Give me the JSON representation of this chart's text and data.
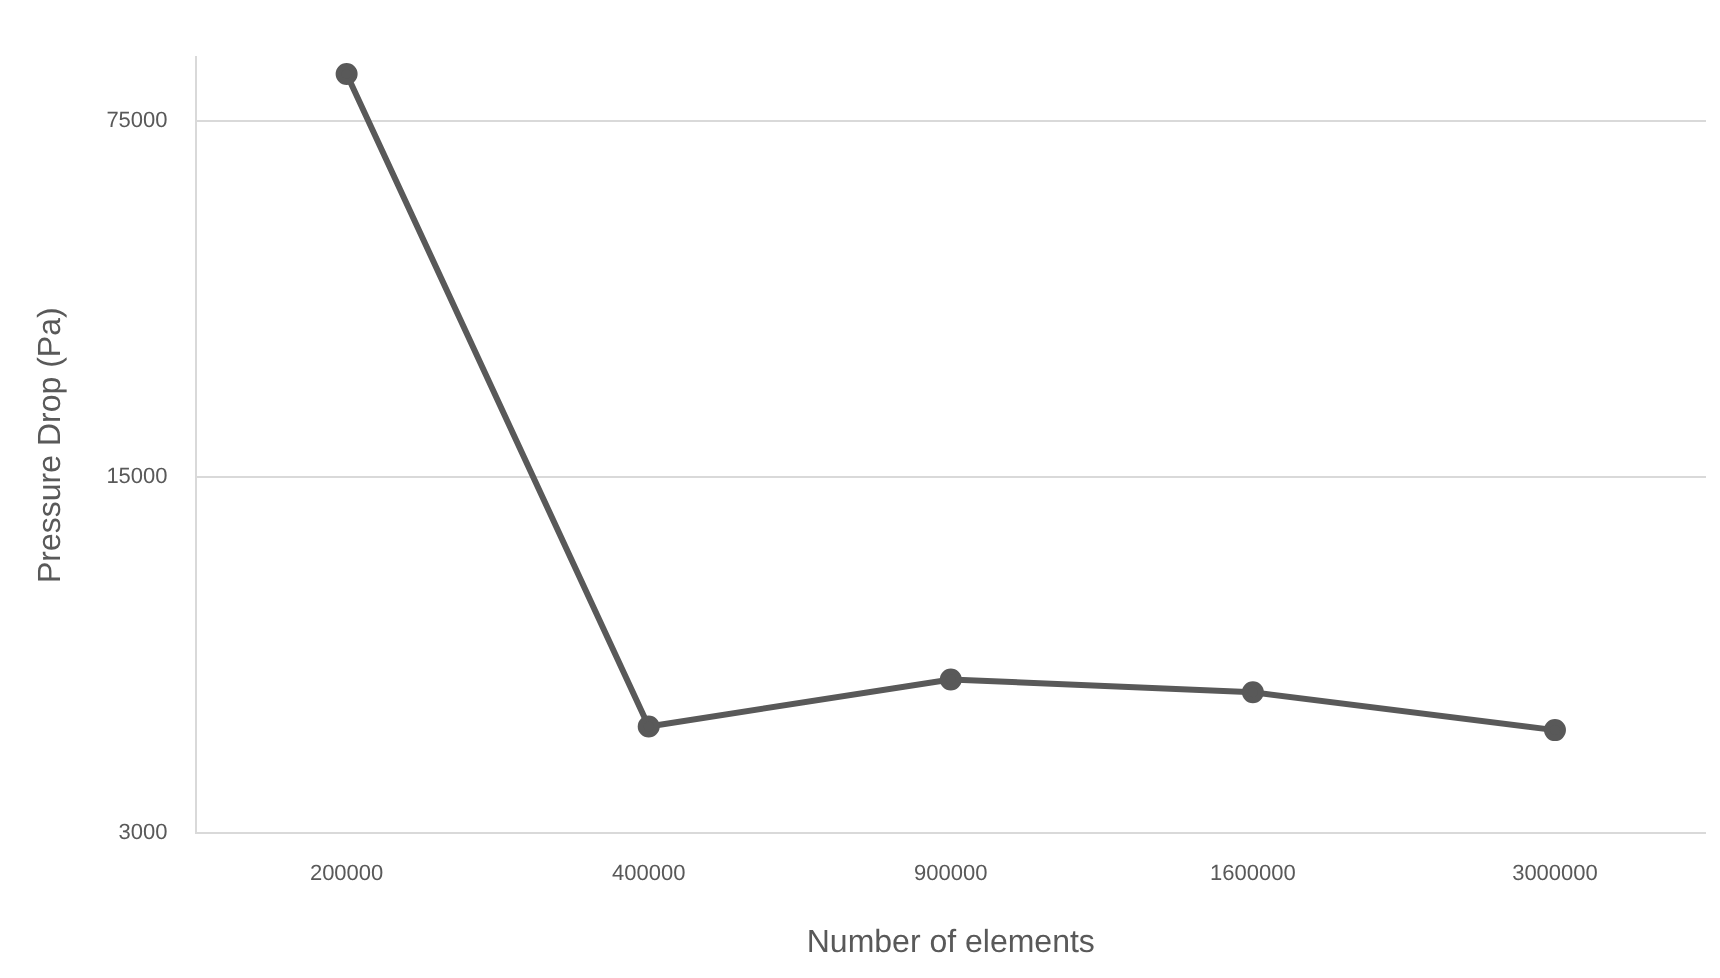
{
  "chart_data": {
    "type": "line",
    "xlabel": "Number of elements",
    "ylabel": "Pressure Drop (Pa)",
    "categories": [
      "200000",
      "400000",
      "900000",
      "1600000",
      "3000000"
    ],
    "series": [
      {
        "color": "#595959",
        "values": [
          92700,
          4860,
          6010,
          5670,
          4780
        ]
      }
    ],
    "log": true,
    "ylim": [
      3000,
      100000
    ],
    "yticks": [
      3000,
      15000,
      75000
    ],
    "grid": "y",
    "marker": "circle",
    "line_style": "solid",
    "legend": false
  }
}
